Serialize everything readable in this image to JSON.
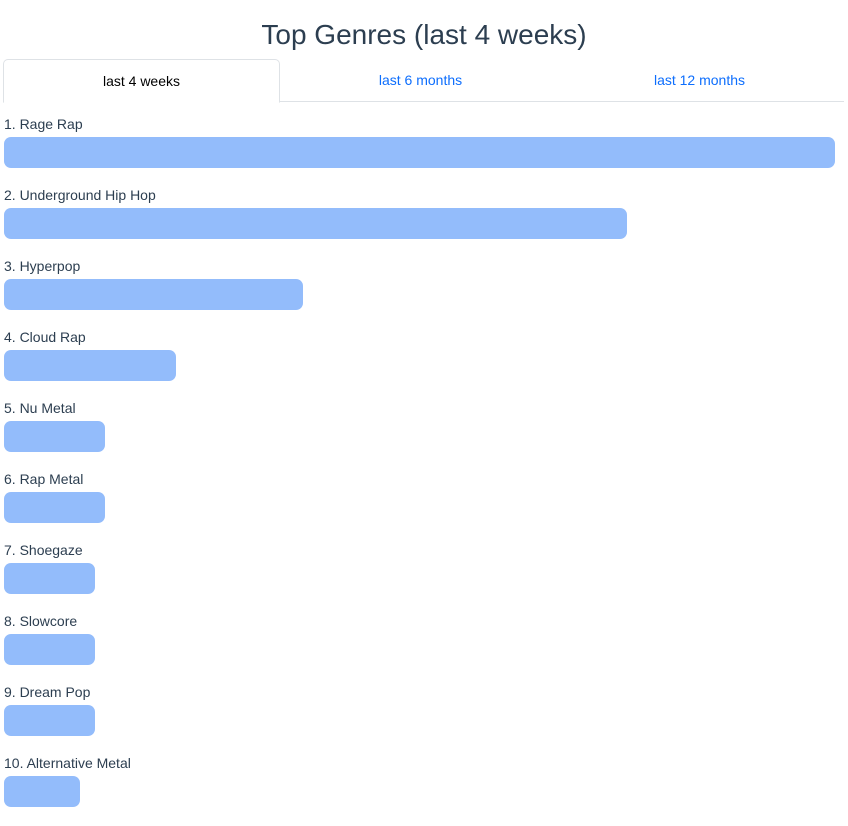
{
  "header": {
    "title": "Top Genres (last 4 weeks)"
  },
  "tabs": [
    {
      "label": "last 4 weeks",
      "active": true
    },
    {
      "label": "last 6 months",
      "active": false
    },
    {
      "label": "last 12 months",
      "active": false
    }
  ],
  "colors": {
    "bar": "#93bcfb",
    "link": "#0d6efd",
    "text": "#2c3e50"
  },
  "genres": [
    {
      "label": "1. Rage Rap",
      "share": 1.0
    },
    {
      "label": "2. Underground Hip Hop",
      "share": 0.75
    },
    {
      "label": "3. Hyperpop",
      "share": 0.36
    },
    {
      "label": "4. Cloud Rap",
      "share": 0.207
    },
    {
      "label": "5. Nu Metal",
      "share": 0.121
    },
    {
      "label": "6. Rap Metal",
      "share": 0.121
    },
    {
      "label": "7. Shoegaze",
      "share": 0.109
    },
    {
      "label": "8. Slowcore",
      "share": 0.109
    },
    {
      "label": "9. Dream Pop",
      "share": 0.109
    },
    {
      "label": "10. Alternative Metal",
      "share": 0.091
    }
  ]
}
